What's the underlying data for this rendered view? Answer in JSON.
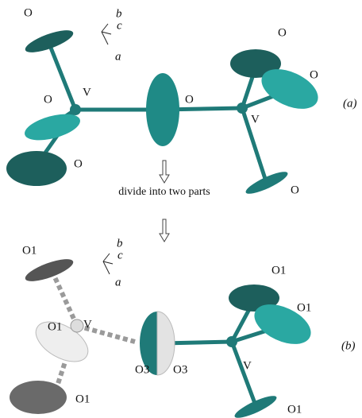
{
  "panel_a": {
    "axes": {
      "b": "b",
      "c": "c",
      "a": "a"
    },
    "labels": [
      "O",
      "O",
      "V",
      "O",
      "O",
      "O",
      "O",
      "V",
      "O"
    ],
    "panel_label": "(a)"
  },
  "transition": "divide into two parts",
  "panel_b": {
    "axes": {
      "b": "b",
      "c": "c",
      "a": "a"
    },
    "labels": [
      "O1",
      "O1",
      "V",
      "O1",
      "O3",
      "O3",
      "O1",
      "O1",
      "V",
      "O1"
    ],
    "panel_label": "(b)"
  }
}
